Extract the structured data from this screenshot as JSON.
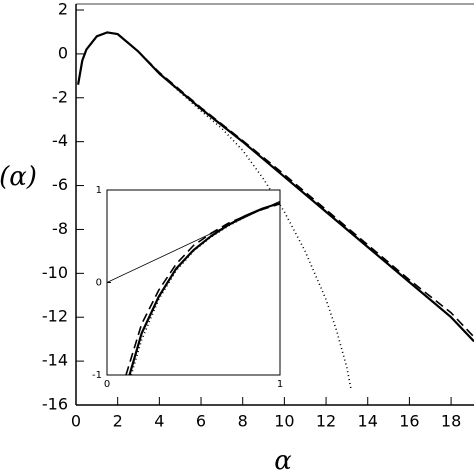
{
  "chart_data": [
    {
      "type": "line",
      "x_label": "α",
      "y_label": "(α)",
      "xlim": [
        0,
        19.1
      ],
      "ylim": [
        -16,
        2
      ],
      "xticks": [
        0,
        2,
        4,
        6,
        8,
        10,
        12,
        14,
        16,
        18
      ],
      "yticks": [
        -16,
        -14,
        -12,
        -10,
        -8,
        -6,
        -4,
        -2,
        0,
        2
      ],
      "series": [
        {
          "color": "#000000",
          "style": "solid",
          "x": [
            0.1,
            0.3,
            0.5,
            1,
            1.5,
            2,
            3,
            4,
            5,
            6,
            8,
            10,
            12,
            14,
            16,
            18,
            19.1
          ],
          "values": [
            -1.4,
            -0.3,
            0.2,
            0.8,
            0.98,
            0.9,
            0.1,
            -0.9,
            -1.7,
            -2.5,
            -4.0,
            -5.6,
            -7.2,
            -8.8,
            -10.4,
            -12.0,
            -13.1
          ]
        },
        {
          "color": "#000000",
          "style": "dashed",
          "x": [
            0.1,
            0.3,
            0.5,
            1,
            1.5,
            2,
            3,
            4,
            5,
            6,
            8,
            10,
            12,
            14,
            16,
            18,
            19.1
          ],
          "values": [
            -1.4,
            -0.3,
            0.2,
            0.8,
            0.98,
            0.9,
            0.1,
            -0.85,
            -1.65,
            -2.45,
            -3.95,
            -5.5,
            -7.1,
            -8.7,
            -10.3,
            -11.8,
            -12.9
          ]
        },
        {
          "color": "#000000",
          "style": "dotted",
          "x": [
            0.1,
            0.3,
            0.5,
            1,
            1.5,
            2,
            3,
            4,
            5,
            6,
            7,
            8,
            9,
            10,
            11,
            12,
            12.5,
            13,
            13.2
          ],
          "values": [
            -1.4,
            -0.3,
            0.2,
            0.8,
            0.98,
            0.9,
            0.1,
            -0.9,
            -1.75,
            -2.6,
            -3.4,
            -4.4,
            -5.7,
            -7.2,
            -9.0,
            -11.2,
            -12.6,
            -14.3,
            -15.3
          ]
        }
      ]
    },
    {
      "type": "line",
      "xlim": [
        0,
        1
      ],
      "ylim": [
        -1,
        1
      ],
      "xticks": [
        0,
        1
      ],
      "yticks": [
        -1,
        0,
        1
      ],
      "series": [
        {
          "color": "#000000",
          "style": "thin",
          "x": [
            0,
            1
          ],
          "values": [
            0,
            0.88
          ]
        },
        {
          "color": "#000000",
          "style": "solid",
          "x": [
            0.13,
            0.2,
            0.3,
            0.4,
            0.5,
            0.6,
            0.7,
            0.8,
            0.9,
            1
          ],
          "values": [
            -1,
            -0.55,
            -0.15,
            0.15,
            0.35,
            0.5,
            0.62,
            0.72,
            0.8,
            0.86
          ]
        },
        {
          "color": "#000000",
          "style": "dashed",
          "x": [
            0.11,
            0.2,
            0.3,
            0.4,
            0.5,
            0.6,
            0.7,
            0.8,
            0.9,
            1
          ],
          "values": [
            -1,
            -0.45,
            -0.08,
            0.2,
            0.4,
            0.53,
            0.64,
            0.72,
            0.79,
            0.85
          ]
        },
        {
          "color": "#000000",
          "style": "dotted",
          "x": [
            0.14,
            0.2,
            0.3,
            0.4,
            0.5,
            0.6,
            0.7,
            0.8,
            0.9,
            1
          ],
          "values": [
            -1,
            -0.62,
            -0.18,
            0.13,
            0.34,
            0.49,
            0.61,
            0.71,
            0.8,
            0.86
          ]
        }
      ]
    }
  ]
}
